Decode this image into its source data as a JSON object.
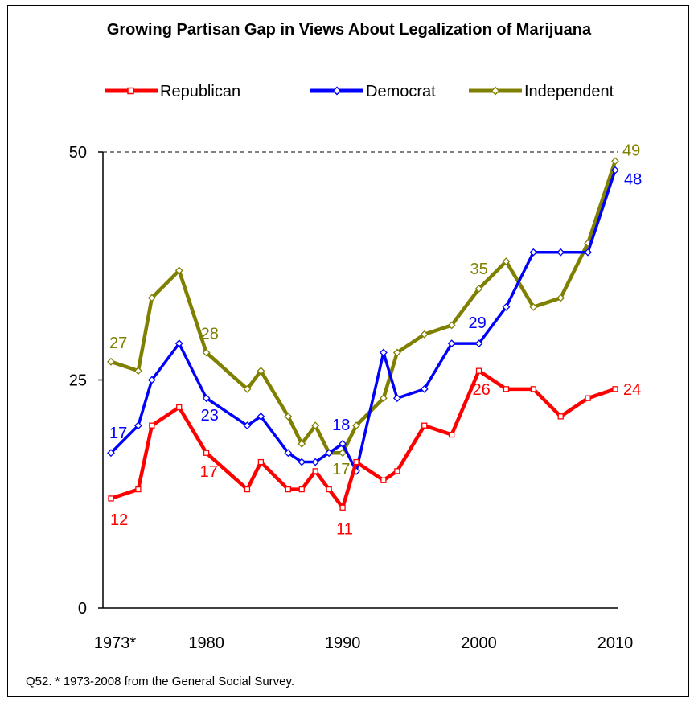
{
  "chart_data": {
    "type": "line",
    "title": "Growing Partisan Gap in Views About Legalization of Marijuana",
    "footnote": "Q52. * 1973-2008 from the General Social Survey.",
    "xlabel": "",
    "ylabel": "",
    "ylim": [
      0,
      50
    ],
    "xlim": [
      1973,
      2010
    ],
    "y_ticks": [
      "0",
      "25",
      "50"
    ],
    "x_ticks": [
      {
        "value": 1973,
        "label": "1973*"
      },
      {
        "value": 1980,
        "label": "1980"
      },
      {
        "value": 1990,
        "label": "1990"
      },
      {
        "value": 2000,
        "label": "2000"
      },
      {
        "value": 2010,
        "label": "2010"
      }
    ],
    "gridlines": [
      25,
      50
    ],
    "legend_position": "top",
    "series": [
      {
        "name": "Republican",
        "color": "#ff0000",
        "marker": "square",
        "x": [
          1973,
          1975,
          1976,
          1978,
          1980,
          1983,
          1984,
          1986,
          1987,
          1988,
          1989,
          1990,
          1991,
          1993,
          1994,
          1996,
          1998,
          2000,
          2002,
          2004,
          2006,
          2008,
          2010
        ],
        "values": [
          12,
          13,
          20,
          22,
          17,
          13,
          16,
          13,
          13,
          15,
          13,
          11,
          16,
          14,
          15,
          20,
          19,
          26,
          24,
          24,
          21,
          23,
          24
        ]
      },
      {
        "name": "Democrat",
        "color": "#0000ff",
        "marker": "diamond",
        "x": [
          1973,
          1975,
          1976,
          1978,
          1980,
          1983,
          1984,
          1986,
          1987,
          1988,
          1989,
          1990,
          1991,
          1993,
          1994,
          1996,
          1998,
          2000,
          2002,
          2004,
          2006,
          2008,
          2010
        ],
        "values": [
          17,
          20,
          25,
          29,
          23,
          20,
          21,
          17,
          16,
          16,
          17,
          18,
          15,
          28,
          23,
          24,
          29,
          29,
          33,
          39,
          39,
          39,
          48
        ]
      },
      {
        "name": "Independent",
        "color": "#808000",
        "marker": "diamond",
        "x": [
          1973,
          1975,
          1976,
          1978,
          1980,
          1983,
          1984,
          1986,
          1987,
          1988,
          1989,
          1990,
          1991,
          1993,
          1994,
          1996,
          1998,
          2000,
          2002,
          2004,
          2006,
          2008,
          2010
        ],
        "values": [
          27,
          26,
          34,
          37,
          28,
          24,
          26,
          21,
          18,
          20,
          17,
          17,
          20,
          23,
          28,
          30,
          31,
          35,
          38,
          33,
          34,
          40,
          49
        ]
      }
    ],
    "data_labels": [
      {
        "series": "Republican",
        "x": 1973,
        "text": "12"
      },
      {
        "series": "Republican",
        "x": 1980,
        "text": "17"
      },
      {
        "series": "Republican",
        "x": 1990,
        "text": "11"
      },
      {
        "series": "Republican",
        "x": 2000,
        "text": "26"
      },
      {
        "series": "Republican",
        "x": 2010,
        "text": "24"
      },
      {
        "series": "Democrat",
        "x": 1973,
        "text": "17"
      },
      {
        "series": "Democrat",
        "x": 1980,
        "text": "23"
      },
      {
        "series": "Democrat",
        "x": 1990,
        "text": "18"
      },
      {
        "series": "Democrat",
        "x": 2000,
        "text": "29"
      },
      {
        "series": "Democrat",
        "x": 2010,
        "text": "48"
      },
      {
        "series": "Independent",
        "x": 1973,
        "text": "27"
      },
      {
        "series": "Independent",
        "x": 1980,
        "text": "28"
      },
      {
        "series": "Independent",
        "x": 1990,
        "text": "17"
      },
      {
        "series": "Independent",
        "x": 2000,
        "text": "35"
      },
      {
        "series": "Independent",
        "x": 2010,
        "text": "49"
      }
    ]
  }
}
